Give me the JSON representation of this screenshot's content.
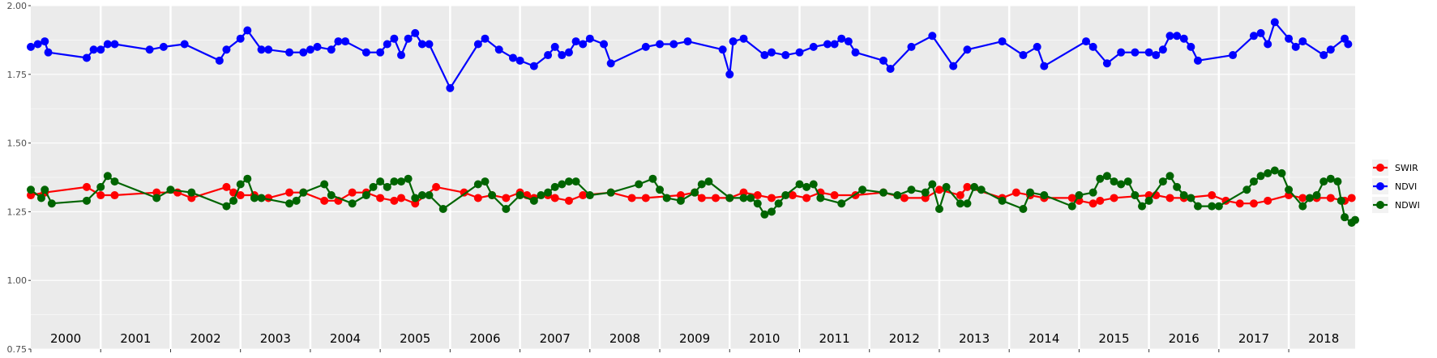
{
  "colors": {
    "panel": "#ebebeb",
    "grid": "#ffffff",
    "SWIR": "#ff0000",
    "NDVI": "#0000ff",
    "NDWI": "#006400"
  },
  "chart_data": {
    "type": "line",
    "title": "",
    "xlabel": "",
    "ylabel": "",
    "ylim": [
      0.75,
      2.0
    ],
    "xlim": [
      2000.0,
      2018.95
    ],
    "y_ticks": [
      "0.75",
      "1.00",
      "1.25",
      "1.50",
      "1.75",
      "2.00"
    ],
    "years": [
      "2000",
      "2001",
      "2002",
      "2003",
      "2004",
      "2005",
      "2006",
      "2007",
      "2008",
      "2009",
      "2010",
      "2011",
      "2012",
      "2013",
      "2014",
      "2015",
      "2016",
      "2017",
      "2018"
    ],
    "grid": true,
    "legend_position": "right",
    "series": [
      {
        "name": "SWIR",
        "color": "#ff0000",
        "points": [
          [
            2000.0,
            1.31
          ],
          [
            2000.2,
            1.32
          ],
          [
            2000.8,
            1.34
          ],
          [
            2001.0,
            1.31
          ],
          [
            2001.2,
            1.31
          ],
          [
            2001.8,
            1.32
          ],
          [
            2002.1,
            1.32
          ],
          [
            2002.3,
            1.3
          ],
          [
            2002.8,
            1.34
          ],
          [
            2002.9,
            1.32
          ],
          [
            2003.0,
            1.31
          ],
          [
            2003.2,
            1.31
          ],
          [
            2003.4,
            1.3
          ],
          [
            2003.7,
            1.32
          ],
          [
            2003.9,
            1.32
          ],
          [
            2004.2,
            1.29
          ],
          [
            2004.4,
            1.29
          ],
          [
            2004.6,
            1.32
          ],
          [
            2004.8,
            1.32
          ],
          [
            2005.0,
            1.3
          ],
          [
            2005.2,
            1.29
          ],
          [
            2005.3,
            1.3
          ],
          [
            2005.5,
            1.28
          ],
          [
            2005.8,
            1.34
          ],
          [
            2006.2,
            1.32
          ],
          [
            2006.4,
            1.3
          ],
          [
            2006.6,
            1.31
          ],
          [
            2006.8,
            1.3
          ],
          [
            2007.0,
            1.32
          ],
          [
            2007.1,
            1.31
          ],
          [
            2007.2,
            1.3
          ],
          [
            2007.4,
            1.31
          ],
          [
            2007.5,
            1.3
          ],
          [
            2007.7,
            1.29
          ],
          [
            2007.9,
            1.31
          ],
          [
            2008.3,
            1.32
          ],
          [
            2008.6,
            1.3
          ],
          [
            2008.8,
            1.3
          ],
          [
            2009.3,
            1.31
          ],
          [
            2009.5,
            1.32
          ],
          [
            2009.6,
            1.3
          ],
          [
            2009.8,
            1.3
          ],
          [
            2010.0,
            1.3
          ],
          [
            2010.2,
            1.32
          ],
          [
            2010.4,
            1.31
          ],
          [
            2010.6,
            1.3
          ],
          [
            2010.9,
            1.31
          ],
          [
            2011.1,
            1.3
          ],
          [
            2011.3,
            1.32
          ],
          [
            2011.5,
            1.31
          ],
          [
            2011.8,
            1.31
          ],
          [
            2012.2,
            1.32
          ],
          [
            2012.5,
            1.3
          ],
          [
            2012.8,
            1.3
          ],
          [
            2013.0,
            1.33
          ],
          [
            2013.3,
            1.31
          ],
          [
            2013.4,
            1.34
          ],
          [
            2013.9,
            1.3
          ],
          [
            2014.1,
            1.32
          ],
          [
            2014.3,
            1.31
          ],
          [
            2014.5,
            1.3
          ],
          [
            2014.9,
            1.3
          ],
          [
            2015.0,
            1.29
          ],
          [
            2015.2,
            1.28
          ],
          [
            2015.3,
            1.29
          ],
          [
            2015.5,
            1.3
          ],
          [
            2016.0,
            1.31
          ],
          [
            2016.1,
            1.31
          ],
          [
            2016.3,
            1.3
          ],
          [
            2016.5,
            1.3
          ],
          [
            2016.9,
            1.31
          ],
          [
            2017.1,
            1.29
          ],
          [
            2017.3,
            1.28
          ],
          [
            2017.5,
            1.28
          ],
          [
            2017.7,
            1.29
          ],
          [
            2018.0,
            1.31
          ],
          [
            2018.2,
            1.3
          ],
          [
            2018.4,
            1.3
          ],
          [
            2018.6,
            1.3
          ],
          [
            2018.8,
            1.29
          ],
          [
            2018.9,
            1.3
          ]
        ]
      },
      {
        "name": "NDVI",
        "color": "#0000ff",
        "points": [
          [
            2000.0,
            1.85
          ],
          [
            2000.1,
            1.86
          ],
          [
            2000.2,
            1.87
          ],
          [
            2000.25,
            1.83
          ],
          [
            2000.8,
            1.81
          ],
          [
            2000.9,
            1.84
          ],
          [
            2001.0,
            1.84
          ],
          [
            2001.1,
            1.86
          ],
          [
            2001.2,
            1.86
          ],
          [
            2001.7,
            1.84
          ],
          [
            2001.9,
            1.85
          ],
          [
            2002.2,
            1.86
          ],
          [
            2002.7,
            1.8
          ],
          [
            2002.8,
            1.84
          ],
          [
            2003.0,
            1.88
          ],
          [
            2003.1,
            1.91
          ],
          [
            2003.3,
            1.84
          ],
          [
            2003.4,
            1.84
          ],
          [
            2003.7,
            1.83
          ],
          [
            2003.9,
            1.83
          ],
          [
            2004.0,
            1.84
          ],
          [
            2004.1,
            1.85
          ],
          [
            2004.3,
            1.84
          ],
          [
            2004.4,
            1.87
          ],
          [
            2004.5,
            1.87
          ],
          [
            2004.8,
            1.83
          ],
          [
            2005.0,
            1.83
          ],
          [
            2005.1,
            1.86
          ],
          [
            2005.2,
            1.88
          ],
          [
            2005.3,
            1.82
          ],
          [
            2005.4,
            1.88
          ],
          [
            2005.5,
            1.9
          ],
          [
            2005.6,
            1.86
          ],
          [
            2005.7,
            1.86
          ],
          [
            2006.0,
            1.7
          ],
          [
            2006.4,
            1.86
          ],
          [
            2006.5,
            1.88
          ],
          [
            2006.7,
            1.84
          ],
          [
            2006.9,
            1.81
          ],
          [
            2007.0,
            1.8
          ],
          [
            2007.2,
            1.78
          ],
          [
            2007.4,
            1.82
          ],
          [
            2007.5,
            1.85
          ],
          [
            2007.6,
            1.82
          ],
          [
            2007.7,
            1.83
          ],
          [
            2007.8,
            1.87
          ],
          [
            2007.9,
            1.86
          ],
          [
            2008.0,
            1.88
          ],
          [
            2008.2,
            1.86
          ],
          [
            2008.3,
            1.79
          ],
          [
            2008.8,
            1.85
          ],
          [
            2009.0,
            1.86
          ],
          [
            2009.2,
            1.86
          ],
          [
            2009.4,
            1.87
          ],
          [
            2009.9,
            1.84
          ],
          [
            2010.0,
            1.75
          ],
          [
            2010.05,
            1.87
          ],
          [
            2010.2,
            1.88
          ],
          [
            2010.5,
            1.82
          ],
          [
            2010.6,
            1.83
          ],
          [
            2010.8,
            1.82
          ],
          [
            2011.0,
            1.83
          ],
          [
            2011.2,
            1.85
          ],
          [
            2011.4,
            1.86
          ],
          [
            2011.5,
            1.86
          ],
          [
            2011.6,
            1.88
          ],
          [
            2011.7,
            1.87
          ],
          [
            2011.8,
            1.83
          ],
          [
            2012.2,
            1.8
          ],
          [
            2012.3,
            1.77
          ],
          [
            2012.6,
            1.85
          ],
          [
            2012.9,
            1.89
          ],
          [
            2013.2,
            1.78
          ],
          [
            2013.4,
            1.84
          ],
          [
            2013.9,
            1.87
          ],
          [
            2014.2,
            1.82
          ],
          [
            2014.4,
            1.85
          ],
          [
            2014.5,
            1.78
          ],
          [
            2015.1,
            1.87
          ],
          [
            2015.2,
            1.85
          ],
          [
            2015.4,
            1.79
          ],
          [
            2015.6,
            1.83
          ],
          [
            2015.8,
            1.83
          ],
          [
            2016.0,
            1.83
          ],
          [
            2016.1,
            1.82
          ],
          [
            2016.2,
            1.84
          ],
          [
            2016.3,
            1.89
          ],
          [
            2016.4,
            1.89
          ],
          [
            2016.5,
            1.88
          ],
          [
            2016.6,
            1.85
          ],
          [
            2016.7,
            1.8
          ],
          [
            2017.2,
            1.82
          ],
          [
            2017.5,
            1.89
          ],
          [
            2017.6,
            1.9
          ],
          [
            2017.7,
            1.86
          ],
          [
            2017.8,
            1.94
          ],
          [
            2018.0,
            1.88
          ],
          [
            2018.1,
            1.85
          ],
          [
            2018.2,
            1.87
          ],
          [
            2018.5,
            1.82
          ],
          [
            2018.6,
            1.84
          ],
          [
            2018.8,
            1.88
          ],
          [
            2018.85,
            1.86
          ]
        ]
      },
      {
        "name": "NDWI",
        "color": "#006400",
        "points": [
          [
            2000.0,
            1.33
          ],
          [
            2000.15,
            1.3
          ],
          [
            2000.2,
            1.33
          ],
          [
            2000.3,
            1.28
          ],
          [
            2000.8,
            1.29
          ],
          [
            2001.0,
            1.34
          ],
          [
            2001.1,
            1.38
          ],
          [
            2001.2,
            1.36
          ],
          [
            2001.8,
            1.3
          ],
          [
            2002.0,
            1.33
          ],
          [
            2002.3,
            1.32
          ],
          [
            2002.8,
            1.27
          ],
          [
            2002.9,
            1.29
          ],
          [
            2003.0,
            1.35
          ],
          [
            2003.1,
            1.37
          ],
          [
            2003.2,
            1.3
          ],
          [
            2003.3,
            1.3
          ],
          [
            2003.7,
            1.28
          ],
          [
            2003.8,
            1.29
          ],
          [
            2003.9,
            1.32
          ],
          [
            2004.2,
            1.35
          ],
          [
            2004.3,
            1.31
          ],
          [
            2004.6,
            1.28
          ],
          [
            2004.8,
            1.31
          ],
          [
            2004.9,
            1.34
          ],
          [
            2005.0,
            1.36
          ],
          [
            2005.1,
            1.34
          ],
          [
            2005.2,
            1.36
          ],
          [
            2005.3,
            1.36
          ],
          [
            2005.4,
            1.37
          ],
          [
            2005.5,
            1.3
          ],
          [
            2005.6,
            1.31
          ],
          [
            2005.7,
            1.31
          ],
          [
            2005.9,
            1.26
          ],
          [
            2006.4,
            1.35
          ],
          [
            2006.5,
            1.36
          ],
          [
            2006.6,
            1.31
          ],
          [
            2006.8,
            1.26
          ],
          [
            2007.0,
            1.31
          ],
          [
            2007.2,
            1.29
          ],
          [
            2007.3,
            1.31
          ],
          [
            2007.4,
            1.32
          ],
          [
            2007.5,
            1.34
          ],
          [
            2007.6,
            1.35
          ],
          [
            2007.7,
            1.36
          ],
          [
            2007.8,
            1.36
          ],
          [
            2008.0,
            1.31
          ],
          [
            2008.3,
            1.32
          ],
          [
            2008.7,
            1.35
          ],
          [
            2008.9,
            1.37
          ],
          [
            2009.0,
            1.33
          ],
          [
            2009.1,
            1.3
          ],
          [
            2009.3,
            1.29
          ],
          [
            2009.5,
            1.32
          ],
          [
            2009.6,
            1.35
          ],
          [
            2009.7,
            1.36
          ],
          [
            2010.0,
            1.3
          ],
          [
            2010.2,
            1.3
          ],
          [
            2010.3,
            1.3
          ],
          [
            2010.4,
            1.28
          ],
          [
            2010.5,
            1.24
          ],
          [
            2010.6,
            1.25
          ],
          [
            2010.7,
            1.28
          ],
          [
            2010.8,
            1.31
          ],
          [
            2011.0,
            1.35
          ],
          [
            2011.1,
            1.34
          ],
          [
            2011.2,
            1.35
          ],
          [
            2011.3,
            1.3
          ],
          [
            2011.6,
            1.28
          ],
          [
            2011.9,
            1.33
          ],
          [
            2012.2,
            1.32
          ],
          [
            2012.4,
            1.31
          ],
          [
            2012.6,
            1.33
          ],
          [
            2012.8,
            1.32
          ],
          [
            2012.9,
            1.35
          ],
          [
            2013.0,
            1.26
          ],
          [
            2013.1,
            1.34
          ],
          [
            2013.3,
            1.28
          ],
          [
            2013.4,
            1.28
          ],
          [
            2013.5,
            1.34
          ],
          [
            2013.6,
            1.33
          ],
          [
            2013.9,
            1.29
          ],
          [
            2014.2,
            1.26
          ],
          [
            2014.3,
            1.32
          ],
          [
            2014.5,
            1.31
          ],
          [
            2014.9,
            1.27
          ],
          [
            2015.0,
            1.31
          ],
          [
            2015.2,
            1.32
          ],
          [
            2015.3,
            1.37
          ],
          [
            2015.4,
            1.38
          ],
          [
            2015.5,
            1.36
          ],
          [
            2015.6,
            1.35
          ],
          [
            2015.7,
            1.36
          ],
          [
            2015.8,
            1.31
          ],
          [
            2015.9,
            1.27
          ],
          [
            2016.0,
            1.29
          ],
          [
            2016.2,
            1.36
          ],
          [
            2016.3,
            1.38
          ],
          [
            2016.4,
            1.34
          ],
          [
            2016.5,
            1.31
          ],
          [
            2016.6,
            1.3
          ],
          [
            2016.7,
            1.27
          ],
          [
            2016.9,
            1.27
          ],
          [
            2017.0,
            1.27
          ],
          [
            2017.4,
            1.33
          ],
          [
            2017.5,
            1.36
          ],
          [
            2017.6,
            1.38
          ],
          [
            2017.7,
            1.39
          ],
          [
            2017.8,
            1.4
          ],
          [
            2017.9,
            1.39
          ],
          [
            2018.0,
            1.33
          ],
          [
            2018.2,
            1.27
          ],
          [
            2018.3,
            1.3
          ],
          [
            2018.4,
            1.31
          ],
          [
            2018.5,
            1.36
          ],
          [
            2018.6,
            1.37
          ],
          [
            2018.7,
            1.36
          ],
          [
            2018.75,
            1.29
          ],
          [
            2018.8,
            1.23
          ],
          [
            2018.9,
            1.21
          ],
          [
            2018.95,
            1.22
          ]
        ]
      }
    ]
  }
}
